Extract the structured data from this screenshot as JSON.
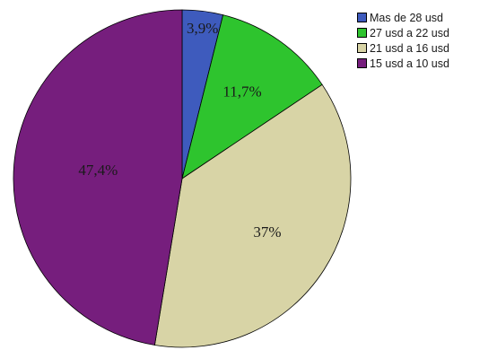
{
  "chart_data": {
    "type": "pie",
    "categories": [
      "Mas de 28 usd",
      "27 usd a 22 usd",
      "21 usd a 16 usd",
      "15 usd a 10 usd"
    ],
    "values": [
      3.9,
      11.7,
      37,
      47.4
    ],
    "data_labels": [
      "3,9%",
      "11,7%",
      "37%",
      "47,4%"
    ],
    "colors": [
      "#3e5bbd",
      "#2ec42e",
      "#d8d4a6",
      "#761e7d"
    ],
    "start_angle": "12 o'clock",
    "direction": "clockwise",
    "legend": {
      "placement": "top-right",
      "entries": [
        "Mas de 28 usd",
        "27 usd a 22 usd",
        "21 usd a 16 usd",
        "15 usd a 10 usd"
      ]
    },
    "title": ""
  }
}
